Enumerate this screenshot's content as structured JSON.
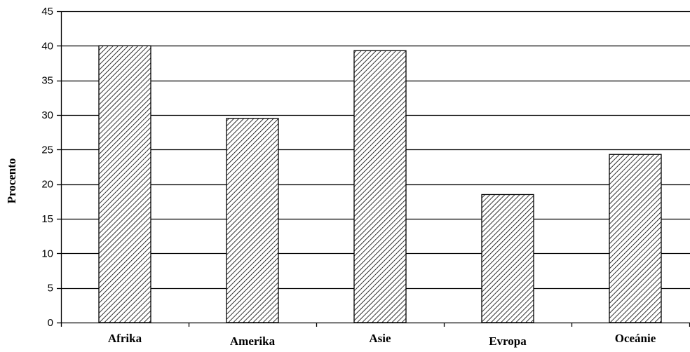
{
  "chart_data": {
    "type": "bar",
    "title": "",
    "xlabel": "",
    "ylabel": "Procento",
    "categories": [
      "Afrika",
      "Amerika",
      "Asie",
      "Evropa",
      "Oceánie"
    ],
    "values": [
      40,
      29.5,
      39.3,
      18.5,
      24.3
    ],
    "ylim": [
      0,
      45
    ],
    "yticks": [
      0,
      5,
      10,
      15,
      20,
      25,
      30,
      35,
      40,
      45
    ],
    "grid": true,
    "legend": "none",
    "bar_fill": "diagonal-hatch",
    "colors": {
      "bar_stroke": "#000000",
      "hatch": "#000000",
      "bar_bg": "#ffffff",
      "grid": "#000000"
    }
  }
}
